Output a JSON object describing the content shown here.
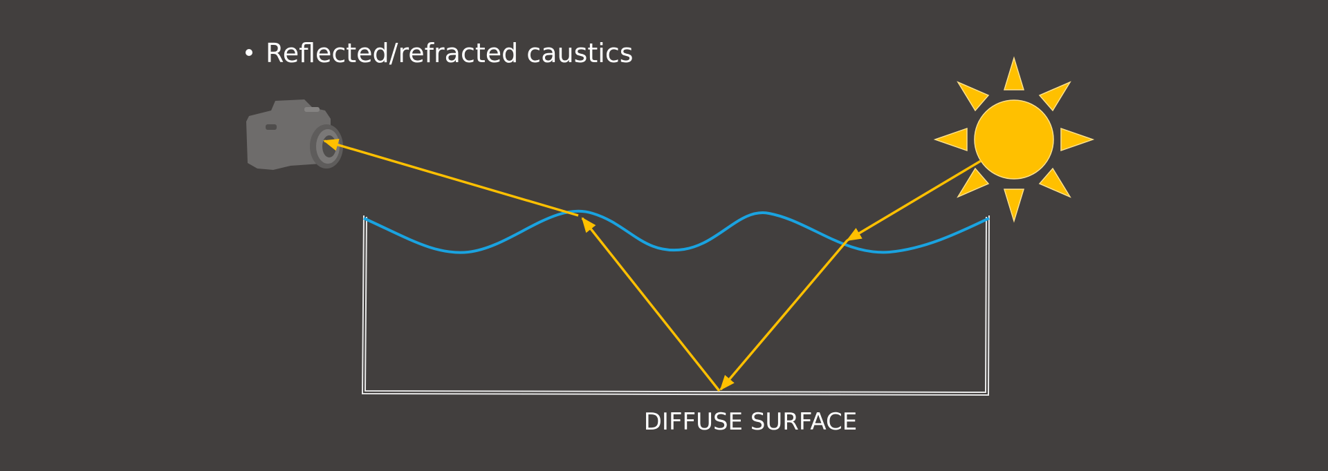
{
  "bullet": "Reflected/refracted caustics",
  "surface_label": "DIFFUSE SURFACE"
}
